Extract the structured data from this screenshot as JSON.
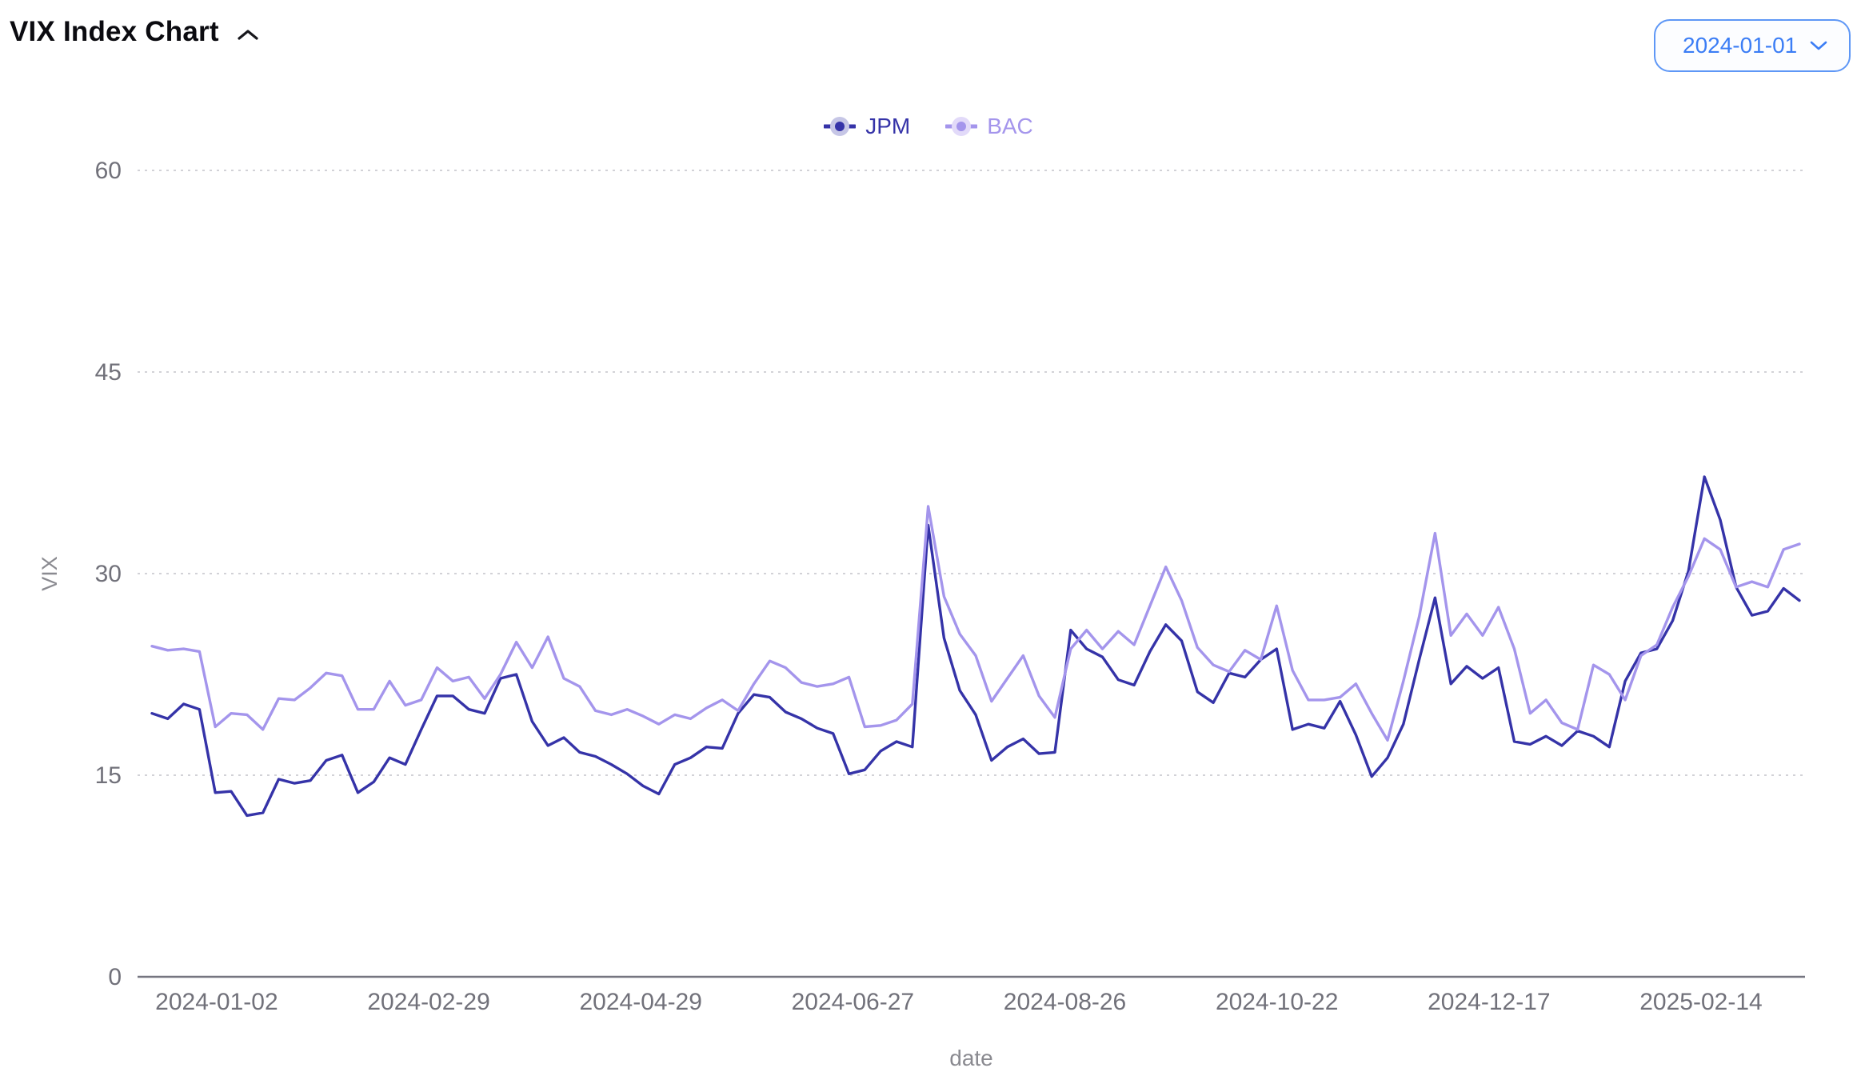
{
  "header": {
    "title": "VIX Index Chart"
  },
  "controls": {
    "date_select": {
      "value": "2024-01-01"
    }
  },
  "colors": {
    "accent_blue": "#3b7df5",
    "axis_text": "#71717a",
    "grid": "#d2d2d7",
    "axis_line": "#757580"
  },
  "chart_data": {
    "type": "line",
    "title": "VIX Index Chart",
    "xlabel": "date",
    "ylabel": "VIX",
    "ylim": [
      0,
      60
    ],
    "y_ticks": [
      60,
      45,
      30,
      15,
      0
    ],
    "grid": "dotted-horizontal",
    "legend_position": "top-center",
    "x_tick_labels": [
      "2024-01-02",
      "2024-02-29",
      "2024-04-29",
      "2024-06-27",
      "2024-08-26",
      "2024-10-22",
      "2024-12-17",
      "2025-02-14"
    ],
    "x_range_note": "daily values from 2024-01-02 to 2025-03-21, sampled ~every 3 trading days",
    "series": [
      {
        "name": "JPM",
        "color": "#3533a8",
        "tint": "#c6c6e6",
        "values": [
          19.6,
          19.2,
          20.3,
          19.9,
          13.7,
          13.8,
          12.0,
          12.2,
          14.7,
          14.4,
          14.6,
          16.1,
          16.5,
          13.7,
          14.5,
          16.3,
          15.8,
          18.4,
          20.9,
          20.9,
          19.9,
          19.6,
          22.2,
          22.5,
          19.0,
          17.2,
          17.8,
          16.7,
          16.4,
          15.8,
          15.1,
          14.2,
          13.6,
          15.8,
          16.3,
          17.1,
          17.0,
          19.6,
          21.0,
          20.8,
          19.7,
          19.2,
          18.5,
          18.1,
          15.1,
          15.4,
          16.8,
          17.5,
          17.1,
          33.6,
          25.2,
          21.3,
          19.5,
          16.1,
          17.1,
          17.7,
          16.6,
          16.7,
          25.8,
          24.4,
          23.8,
          22.1,
          21.7,
          24.2,
          26.2,
          25.0,
          21.2,
          20.4,
          22.6,
          22.3,
          23.6,
          24.4,
          18.4,
          18.8,
          18.5,
          20.5,
          18.0,
          14.9,
          16.3,
          18.8,
          23.6,
          28.2,
          21.8,
          23.1,
          22.2,
          23.0,
          17.5,
          17.3,
          17.9,
          17.2,
          18.3,
          17.9,
          17.1,
          22.0,
          24.1,
          24.4,
          26.5,
          30.2,
          37.2,
          34.0,
          29.0,
          26.9,
          27.2,
          28.9,
          28.0
        ]
      },
      {
        "name": "BAC",
        "color": "#a495ec",
        "tint": "#e2daf9",
        "values": [
          24.6,
          24.3,
          24.4,
          24.2,
          18.6,
          19.6,
          19.5,
          18.4,
          20.7,
          20.6,
          21.5,
          22.6,
          22.4,
          19.9,
          19.9,
          22.0,
          20.2,
          20.6,
          23.0,
          22.0,
          22.3,
          20.7,
          22.5,
          24.9,
          23.0,
          25.3,
          22.2,
          21.6,
          19.8,
          19.5,
          19.9,
          19.4,
          18.8,
          19.5,
          19.2,
          20.0,
          20.6,
          19.8,
          21.8,
          23.5,
          23.0,
          21.9,
          21.6,
          21.8,
          22.3,
          18.6,
          18.7,
          19.1,
          20.3,
          35.0,
          28.3,
          25.5,
          23.9,
          20.5,
          22.2,
          23.9,
          20.9,
          19.3,
          24.4,
          25.8,
          24.4,
          25.7,
          24.7,
          27.6,
          30.5,
          28.0,
          24.5,
          23.2,
          22.7,
          24.3,
          23.6,
          27.6,
          22.8,
          20.6,
          20.6,
          20.8,
          21.8,
          19.6,
          17.6,
          22.0,
          26.8,
          33.0,
          25.4,
          27.0,
          25.4,
          27.5,
          24.4,
          19.6,
          20.6,
          18.9,
          18.4,
          23.2,
          22.5,
          20.6,
          23.9,
          24.7,
          27.5,
          29.8,
          32.6,
          31.8,
          29.0,
          29.4,
          29.0,
          31.8,
          32.2
        ]
      }
    ]
  }
}
